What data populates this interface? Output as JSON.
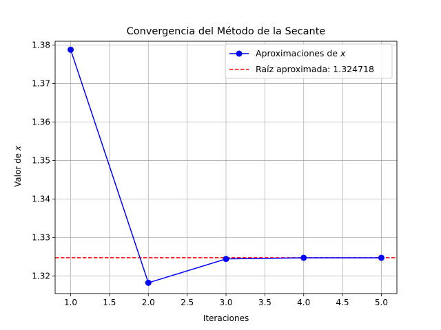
{
  "chart_data": {
    "type": "line",
    "title": "Convergencia del Método de la Secante",
    "xlabel": "Iteraciones",
    "ylabel": "Valor de x",
    "xlim": [
      0.8,
      5.2
    ],
    "ylim": [
      1.3154,
      1.381
    ],
    "xticks": [
      1.0,
      1.5,
      2.0,
      2.5,
      3.0,
      3.5,
      4.0,
      4.5,
      5.0
    ],
    "xtick_labels": [
      "1.0",
      "1.5",
      "2.0",
      "2.5",
      "3.0",
      "3.5",
      "4.0",
      "4.5",
      "5.0"
    ],
    "yticks": [
      1.32,
      1.33,
      1.34,
      1.35,
      1.36,
      1.37,
      1.38
    ],
    "ytick_labels": [
      "1.32",
      "1.33",
      "1.34",
      "1.35",
      "1.36",
      "1.37",
      "1.38"
    ],
    "grid": true,
    "legend_position": "top-right",
    "series": [
      {
        "name": "Aproximaciones de x",
        "x": [
          1,
          2,
          3,
          4,
          5
        ],
        "y": [
          1.3788,
          1.3182,
          1.3244,
          1.3247,
          1.3247
        ],
        "color": "#0000ff",
        "marker": "circle",
        "line_style": "solid"
      }
    ],
    "reference_lines": [
      {
        "name": "Raíz aproximada: 1.324718",
        "y": 1.324718,
        "color": "#ff0000",
        "line_style": "dashed"
      }
    ]
  }
}
